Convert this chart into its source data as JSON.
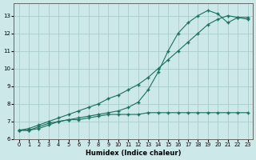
{
  "xlabel": "Humidex (Indice chaleur)",
  "bg_color": "#cce8e8",
  "grid_color": "#aacccc",
  "line_color": "#1a7060",
  "xlim": [
    -0.5,
    23.5
  ],
  "ylim": [
    6,
    13.7
  ],
  "yticks": [
    6,
    7,
    8,
    9,
    10,
    11,
    12,
    13
  ],
  "xticks": [
    0,
    1,
    2,
    3,
    4,
    5,
    6,
    7,
    8,
    9,
    10,
    11,
    12,
    13,
    14,
    15,
    16,
    17,
    18,
    19,
    20,
    21,
    22,
    23
  ],
  "line1_x": [
    0,
    1,
    2,
    3,
    4,
    5,
    6,
    7,
    8,
    9,
    10,
    11,
    12,
    13,
    14,
    15,
    16,
    17,
    18,
    19,
    20,
    21,
    22,
    23
  ],
  "line1_y": [
    6.5,
    6.5,
    6.6,
    6.8,
    7.0,
    7.1,
    7.1,
    7.2,
    7.3,
    7.4,
    7.4,
    7.4,
    7.4,
    7.5,
    7.5,
    7.5,
    7.5,
    7.5,
    7.5,
    7.5,
    7.5,
    7.5,
    7.5,
    7.5
  ],
  "line2_x": [
    0,
    1,
    2,
    3,
    4,
    5,
    6,
    7,
    8,
    9,
    10,
    11,
    12,
    13,
    14,
    15,
    16,
    17,
    18,
    19,
    20,
    21,
    22,
    23
  ],
  "line2_y": [
    6.5,
    6.6,
    6.8,
    7.0,
    7.2,
    7.4,
    7.6,
    7.8,
    8.0,
    8.3,
    8.5,
    8.8,
    9.1,
    9.5,
    10.0,
    10.5,
    11.0,
    11.5,
    12.0,
    12.5,
    12.8,
    13.0,
    12.9,
    12.9
  ],
  "line3_x": [
    0,
    1,
    2,
    3,
    4,
    5,
    6,
    7,
    8,
    9,
    10,
    11,
    12,
    13,
    14,
    15,
    16,
    17,
    18,
    19,
    20,
    21,
    22,
    23
  ],
  "line3_y": [
    6.5,
    6.5,
    6.7,
    6.9,
    7.0,
    7.1,
    7.2,
    7.3,
    7.4,
    7.5,
    7.6,
    7.8,
    8.1,
    8.8,
    9.8,
    11.0,
    12.0,
    12.6,
    13.0,
    13.3,
    13.1,
    12.6,
    12.9,
    12.8
  ]
}
